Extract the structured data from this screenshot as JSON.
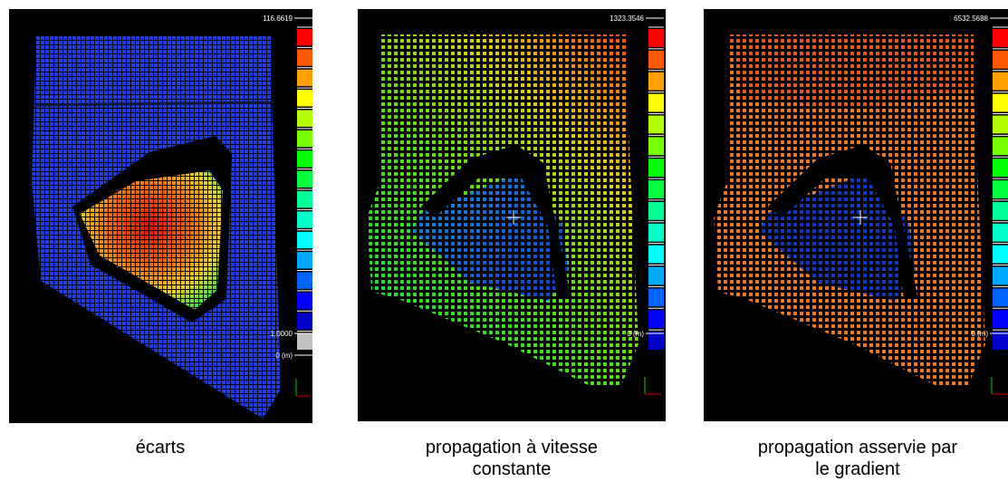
{
  "panels": [
    {
      "caption_lines": [
        "écarts"
      ],
      "scale_max": "116.6619",
      "scale_mid": "1.0000",
      "scale_zero": "0 (m)",
      "colors": [
        "#ff0000",
        "#ff5a00",
        "#ffa000",
        "#ffff00",
        "#b4ff00",
        "#78ff00",
        "#00ff00",
        "#00ff3c",
        "#00ff96",
        "#00ffc8",
        "#00ffff",
        "#00aaff",
        "#0064ff",
        "#0000ff",
        "#0000c8",
        "#c0c0c0"
      ]
    },
    {
      "caption_lines": [
        "propagation à vitesse",
        "constante"
      ],
      "scale_max": "1323.3546",
      "scale_zero": "0 (m)",
      "colors": [
        "#ff0000",
        "#ff5a00",
        "#ffa000",
        "#ffff00",
        "#b4ff00",
        "#78ff00",
        "#00ff00",
        "#00ff3c",
        "#00ff96",
        "#00ffc8",
        "#00ffff",
        "#00aaff",
        "#0064ff",
        "#0000ff",
        "#0000c8"
      ]
    },
    {
      "caption_lines": [
        "propagation asservie par",
        "le gradient"
      ],
      "scale_max": "6532.5688",
      "scale_zero": "0 (m)",
      "colors": [
        "#ff0000",
        "#ff5a00",
        "#ffa000",
        "#ffff00",
        "#b4ff00",
        "#78ff00",
        "#00ff00",
        "#00ff3c",
        "#00ff96",
        "#00ffc8",
        "#00ffff",
        "#00aaff",
        "#0064ff",
        "#0000ff",
        "#0000c8"
      ]
    }
  ]
}
